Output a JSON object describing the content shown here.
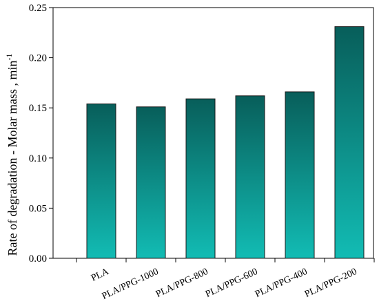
{
  "chart_data": {
    "type": "bar",
    "title": "",
    "xlabel": "",
    "ylabel": "Rate of degradation - Molar mass , min",
    "ylabel_superscript": "-1",
    "categories": [
      "PLA",
      "PLA/PPG-1000",
      "PLA/PPG-800",
      "PLA/PPG-600",
      "PLA/PPG-400",
      "PLA/PPG-200"
    ],
    "values": [
      0.154,
      0.151,
      0.159,
      0.162,
      0.166,
      0.231
    ],
    "ylim": [
      0,
      0.25
    ],
    "yticks": [
      "0.00",
      "0.05",
      "0.10",
      "0.15",
      "0.20",
      "0.25"
    ],
    "grid": false,
    "legend": "none",
    "colors": {
      "bar_top": "#085e5a",
      "bar_bottom": "#12bcb4",
      "bar_stroke": "#1a1a1a",
      "axis": "#000000"
    }
  }
}
